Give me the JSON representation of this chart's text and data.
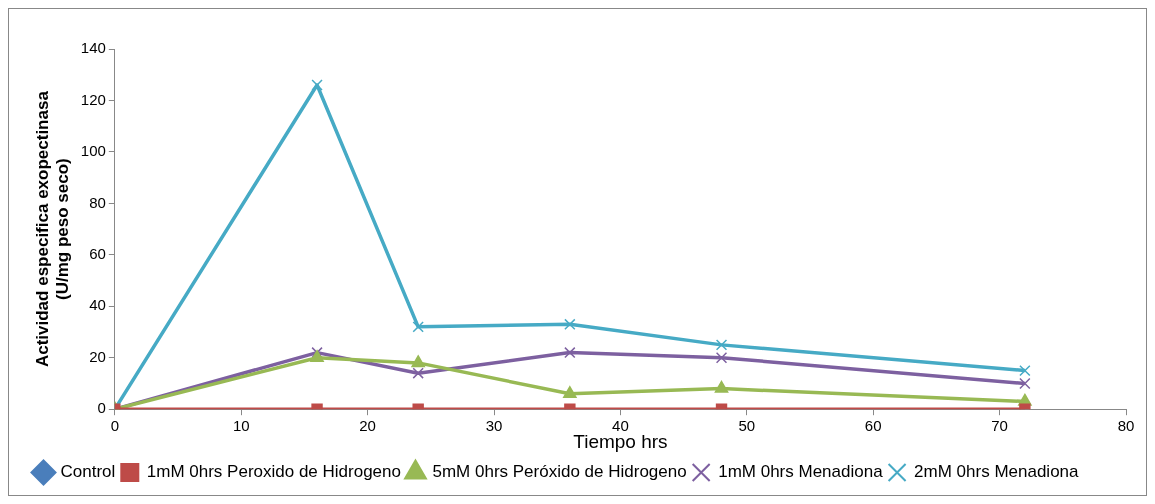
{
  "chart_data": {
    "type": "line",
    "xlabel": "Tiempo hrs",
    "ylabel": "Actividad especifica exopectinasa\n(U/mg peso seco)",
    "x": [
      0,
      16,
      24,
      36,
      48,
      72
    ],
    "xlim": [
      0,
      80
    ],
    "xticks": [
      0,
      10,
      20,
      30,
      40,
      50,
      60,
      70,
      80
    ],
    "ylim": [
      0,
      140
    ],
    "yticks": [
      0,
      20,
      40,
      60,
      80,
      100,
      120,
      140
    ],
    "grid": false,
    "legend": "bottom",
    "series": [
      {
        "name": "Control",
        "color": "#4a7ebb",
        "marker": "diamond",
        "values": [
          null,
          null,
          null,
          null,
          null,
          null
        ]
      },
      {
        "name": "1mM 0hrs Peroxido de Hidrogeno",
        "color": "#be4b48",
        "marker": "square",
        "values": [
          0,
          0,
          0,
          0,
          0,
          0
        ]
      },
      {
        "name": "5mM 0hrs Peróxido de Hidrogeno",
        "color": "#98b954",
        "marker": "triangle",
        "values": [
          0,
          20,
          18,
          6,
          8,
          3
        ]
      },
      {
        "name": "1mM 0hrs Menadiona",
        "color": "#7d60a0",
        "marker": "cross",
        "values": [
          0,
          22,
          14,
          22,
          20,
          10
        ]
      },
      {
        "name": "2mM 0hrs Menadiona",
        "color": "#46aac5",
        "marker": "cross",
        "values": [
          0,
          126,
          32,
          33,
          25,
          15
        ]
      }
    ]
  }
}
